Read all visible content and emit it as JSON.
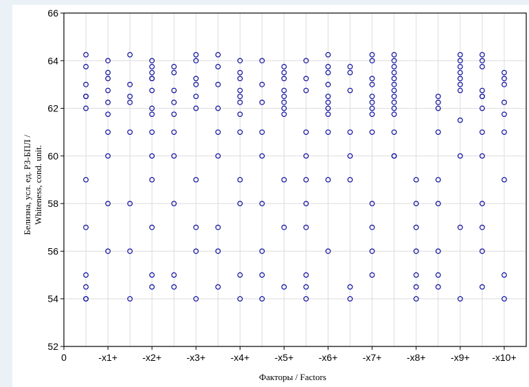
{
  "chart_data": {
    "type": "scatter",
    "xlabel": "Факторы / Factors",
    "ylabel_lines": [
      "Белизна, усл. ед. РЗ-БПЛ /",
      "Whiteness, cond. unit."
    ],
    "x_tick_labels": [
      "0",
      "-x1+",
      "-x2+",
      "-x3+",
      "-x4+",
      "-x5+",
      "-x6+",
      "-x7+",
      "-x8+",
      "-x9+",
      "-x10+"
    ],
    "xlim": [
      0,
      10.5
    ],
    "ylim": [
      52,
      66
    ],
    "y_ticks": [
      52,
      54,
      56,
      58,
      60,
      62,
      64,
      66
    ],
    "grid": true,
    "marker_color": "#0a0aa0",
    "series": [
      {
        "x": 0.5,
        "y": [
          64.25,
          63.75,
          63.0,
          62.5,
          62.5,
          62.0,
          59.0,
          57.0,
          55.0,
          54.5,
          54.0,
          54.0
        ]
      },
      {
        "x": 1.0,
        "y": [
          64.0,
          63.5,
          63.25,
          62.75,
          62.25,
          61.75,
          61.0,
          60.0,
          58.0,
          56.0
        ]
      },
      {
        "x": 1.5,
        "y": [
          64.25,
          63.0,
          62.5,
          62.25,
          61.0,
          58.0,
          56.0,
          54.0
        ]
      },
      {
        "x": 2.0,
        "y": [
          64.0,
          63.75,
          63.5,
          63.25,
          63.25,
          62.75,
          62.0,
          61.75,
          61.0,
          60.0,
          59.0,
          57.0,
          55.0,
          54.5
        ]
      },
      {
        "x": 2.5,
        "y": [
          63.75,
          63.5,
          62.75,
          62.25,
          61.75,
          61.0,
          60.0,
          58.0,
          55.0,
          54.5
        ]
      },
      {
        "x": 3.0,
        "y": [
          64.25,
          64.0,
          63.25,
          63.0,
          62.5,
          62.0,
          59.0,
          57.0,
          56.0,
          54.0
        ]
      },
      {
        "x": 3.5,
        "y": [
          64.25,
          63.75,
          63.0,
          62.0,
          61.0,
          60.0,
          57.0,
          56.0,
          54.5
        ]
      },
      {
        "x": 4.0,
        "y": [
          64.0,
          63.5,
          63.25,
          62.75,
          62.5,
          62.25,
          61.75,
          61.0,
          59.0,
          58.0,
          55.0,
          54.0
        ]
      },
      {
        "x": 4.5,
        "y": [
          64.0,
          63.0,
          62.25,
          61.0,
          60.0,
          58.0,
          56.0,
          55.0,
          54.0
        ]
      },
      {
        "x": 5.0,
        "y": [
          63.75,
          63.5,
          63.25,
          62.75,
          62.5,
          62.25,
          62.0,
          61.75,
          59.0,
          57.0,
          54.5
        ]
      },
      {
        "x": 5.5,
        "y": [
          64.0,
          63.25,
          62.75,
          61.0,
          60.0,
          59.0,
          58.0,
          57.0,
          55.0,
          54.5,
          54.0
        ]
      },
      {
        "x": 6.0,
        "y": [
          64.25,
          63.75,
          63.5,
          63.0,
          62.5,
          62.25,
          62.0,
          61.75,
          61.0,
          59.0,
          56.0
        ]
      },
      {
        "x": 6.5,
        "y": [
          63.75,
          63.5,
          62.75,
          61.0,
          60.0,
          59.0,
          54.5,
          54.0
        ]
      },
      {
        "x": 7.0,
        "y": [
          64.25,
          64.0,
          63.25,
          63.0,
          62.5,
          62.25,
          62.0,
          61.75,
          61.0,
          58.0,
          57.0,
          56.0,
          55.0
        ]
      },
      {
        "x": 7.5,
        "y": [
          64.25,
          64.0,
          63.75,
          63.5,
          63.25,
          63.0,
          62.75,
          62.5,
          62.25,
          62.0,
          61.75,
          61.0,
          60.0,
          60.0
        ]
      },
      {
        "x": 8.0,
        "y": [
          59.0,
          58.0,
          57.0,
          56.0,
          55.0,
          54.5,
          54.0
        ]
      },
      {
        "x": 8.5,
        "y": [
          62.5,
          62.25,
          62.0,
          61.0,
          59.0,
          58.0,
          56.0,
          55.0,
          54.5
        ]
      },
      {
        "x": 9.0,
        "y": [
          64.25,
          64.0,
          63.75,
          63.5,
          63.25,
          63.0,
          62.75,
          61.5,
          60.0,
          57.0,
          54.0
        ]
      },
      {
        "x": 9.5,
        "y": [
          64.25,
          64.0,
          63.75,
          62.75,
          62.5,
          62.5,
          62.0,
          61.0,
          60.0,
          58.0,
          57.0,
          56.0,
          54.5
        ]
      },
      {
        "x": 10.0,
        "y": [
          63.5,
          63.25,
          63.0,
          62.25,
          61.75,
          61.0,
          59.0,
          55.0,
          54.0
        ]
      }
    ]
  }
}
